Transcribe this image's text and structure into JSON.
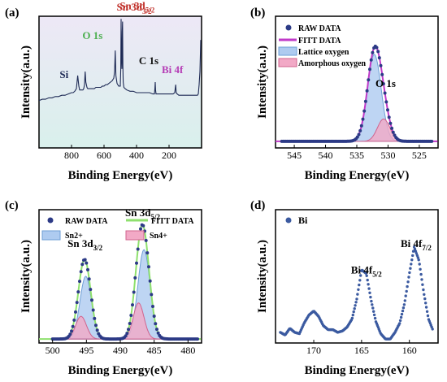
{
  "chart_data": [
    {
      "panel": "(a)",
      "type": "line",
      "xlabel": "Binding Energy(eV)",
      "ylabel": "Intensity(a.u.)",
      "xlim": [
        1000,
        0
      ],
      "x_ticks": [
        800,
        600,
        400,
        200
      ],
      "background_gradient": [
        "#ede8f6",
        "#d9f0ec"
      ],
      "series": [
        {
          "color": "#1e2a55",
          "x": [
            1000,
            980,
            960,
            940,
            920,
            900,
            880,
            860,
            840,
            820,
            800,
            790,
            780,
            770,
            762,
            755,
            750,
            740,
            730,
            725,
            720,
            716,
            712,
            705,
            700,
            690,
            680,
            670,
            660,
            650,
            640,
            630,
            620,
            610,
            600,
            590,
            580,
            570,
            560,
            550,
            540,
            535,
            531,
            527,
            520,
            510,
            500,
            497,
            495,
            493,
            490,
            488,
            486,
            484,
            482,
            478,
            470,
            460,
            440,
            420,
            400,
            380,
            360,
            340,
            320,
            300,
            290,
            287,
            285,
            283,
            280,
            270,
            250,
            230,
            210,
            190,
            175,
            165,
            162,
            159,
            156,
            150,
            140,
            120,
            100,
            80,
            60,
            40,
            25,
            20,
            15,
            10,
            5
          ],
          "y": [
            0.36,
            0.37,
            0.37,
            0.38,
            0.38,
            0.39,
            0.39,
            0.4,
            0.4,
            0.41,
            0.42,
            0.42,
            0.43,
            0.45,
            0.55,
            0.47,
            0.44,
            0.44,
            0.44,
            0.45,
            0.48,
            0.58,
            0.5,
            0.46,
            0.45,
            0.45,
            0.45,
            0.45,
            0.45,
            0.46,
            0.46,
            0.46,
            0.46,
            0.47,
            0.47,
            0.48,
            0.48,
            0.49,
            0.5,
            0.51,
            0.53,
            0.58,
            0.74,
            0.55,
            0.49,
            0.47,
            0.47,
            0.6,
            0.98,
            0.7,
            0.6,
            0.88,
            0.96,
            0.62,
            0.5,
            0.46,
            0.45,
            0.44,
            0.43,
            0.43,
            0.42,
            0.42,
            0.42,
            0.42,
            0.42,
            0.41,
            0.41,
            0.45,
            0.5,
            0.44,
            0.41,
            0.41,
            0.41,
            0.41,
            0.41,
            0.41,
            0.41,
            0.42,
            0.45,
            0.48,
            0.42,
            0.41,
            0.4,
            0.4,
            0.4,
            0.4,
            0.4,
            0.4,
            0.4,
            0.41,
            0.48,
            0.58,
            0.82
          ]
        }
      ],
      "annotations": [
        {
          "text": "Sn 3d",
          "sub": "5/2",
          "x": 486,
          "y": 0.88,
          "color": "#c0302a"
        },
        {
          "text": "Sn 3d",
          "sub": "3/2",
          "x": 495,
          "y": 0.98,
          "color": "#c0302a"
        },
        {
          "text": "O 1s",
          "sub": "",
          "x": 531,
          "y": 0.74,
          "color": "#4caf50"
        },
        {
          "text": "Si",
          "sub": "",
          "x": 716,
          "y": 0.58,
          "color": "#1e2a55"
        },
        {
          "text": "C 1s",
          "sub": "",
          "x": 285,
          "y": 0.5,
          "color": "#111111"
        },
        {
          "text": "Bi 4f",
          "sub": "",
          "x": 159,
          "y": 0.48,
          "color": "#b53cb5"
        }
      ]
    },
    {
      "panel": "(b)",
      "type": "scatter",
      "xlabel": "Binding Energy(eV)",
      "ylabel": "Intensity(a.u.)",
      "xlim": [
        548,
        522
      ],
      "x_ticks": [
        545,
        540,
        535,
        530,
        525
      ],
      "legend": [
        "RAW DATA",
        "FITT DATA",
        "Lattice oxygen",
        "Amorphous oxygen"
      ],
      "legend_position": "top-left",
      "annotation": "O 1s",
      "baseline": 0.05,
      "components": [
        {
          "name": "Lattice oxygen",
          "center": 532.2,
          "height": 0.66,
          "width": 1.1,
          "fill": "#aecbf0",
          "stroke": "#6e9fd6"
        },
        {
          "name": "Amorphous oxygen",
          "center": 530.7,
          "height": 0.17,
          "width": 1.0,
          "fill": "#f2a9c6",
          "stroke": "#d0648e"
        }
      ],
      "raw_points": {
        "from": 547,
        "to": 523,
        "step": 0.22,
        "color": "#2c3a86"
      },
      "fit_color": "#c03ac8"
    },
    {
      "panel": "(c)",
      "type": "scatter",
      "xlabel": "Binding Energy(eV)",
      "ylabel": "Intensity(a.u.)",
      "xlim": [
        502,
        478
      ],
      "x_ticks": [
        500,
        495,
        490,
        485,
        480
      ],
      "legend": [
        "RAW DATA",
        "FITT DATA",
        "Sn2+",
        "Sn4+"
      ],
      "legend_position": "top",
      "annotations": [
        {
          "text": "Sn 3d",
          "sub": "3/2",
          "x": 495.2,
          "y": 0.72
        },
        {
          "text": "Sn 3d",
          "sub": "5/2",
          "x": 486.7,
          "y": 0.95
        }
      ],
      "baseline": 0.03,
      "components": [
        {
          "name": "Sn2+",
          "center": 495.1,
          "height": 0.47,
          "width": 0.85,
          "fill": "#aecbf0",
          "stroke": "#6e9fd6"
        },
        {
          "name": "Sn4+",
          "center": 495.8,
          "height": 0.17,
          "width": 0.8,
          "fill": "#f2a9c6",
          "stroke": "#d0648e"
        },
        {
          "name": "Sn2+",
          "center": 486.5,
          "height": 0.67,
          "width": 0.9,
          "fill": "#aecbf0",
          "stroke": "#6e9fd6"
        },
        {
          "name": "Sn4+",
          "center": 487.3,
          "height": 0.27,
          "width": 0.8,
          "fill": "#f2a9c6",
          "stroke": "#d0648e"
        }
      ],
      "raw_points": {
        "from": 500,
        "to": 478.5,
        "step": 0.2,
        "color": "#2c3a86"
      },
      "fit_color": "#8fe06e"
    },
    {
      "panel": "(d)",
      "type": "scatter",
      "xlabel": "Binding Energy(eV)",
      "ylabel": "Intensity(a.u.)",
      "xlim": [
        174,
        157
      ],
      "x_ticks": [
        170,
        165,
        160
      ],
      "legend": [
        "Bi"
      ],
      "legend_position": "top-left",
      "annotations": [
        {
          "text": "Bi 4f",
          "sub": "5/2",
          "x": 164.5,
          "y": 0.52
        },
        {
          "text": "Bi 4f",
          "sub": "7/2",
          "x": 159.3,
          "y": 0.72
        }
      ],
      "point_color": "#3b5aa0",
      "series": [
        {
          "x": [
            173.5,
            173.0,
            172.5,
            172.0,
            171.5,
            171.0,
            170.5,
            170.0,
            169.5,
            169.0,
            168.5,
            168.0,
            167.5,
            167.0,
            166.5,
            166.0,
            165.5,
            165.0,
            164.5,
            164.0,
            163.5,
            163.0,
            162.5,
            162.0,
            161.5,
            161.0,
            160.5,
            160.0,
            159.5,
            159.0,
            158.5,
            158.0,
            157.5
          ],
          "y": [
            0.08,
            0.06,
            0.11,
            0.08,
            0.07,
            0.15,
            0.21,
            0.24,
            0.2,
            0.13,
            0.1,
            0.1,
            0.08,
            0.09,
            0.12,
            0.18,
            0.33,
            0.55,
            0.52,
            0.32,
            0.16,
            0.07,
            0.03,
            0.03,
            0.08,
            0.15,
            0.3,
            0.52,
            0.72,
            0.62,
            0.38,
            0.18,
            0.09
          ]
        }
      ]
    }
  ]
}
